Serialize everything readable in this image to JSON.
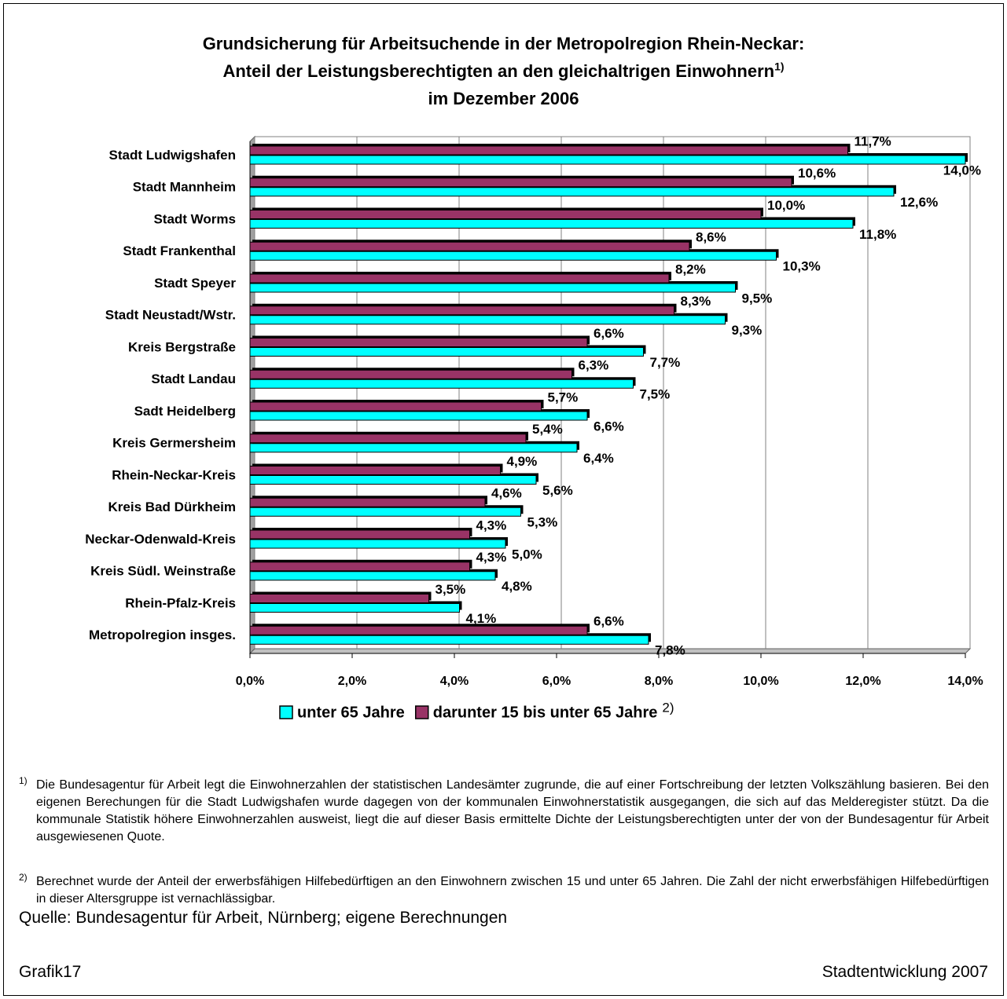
{
  "chart_data": {
    "type": "hbar",
    "title": [
      "Grundsicherung für Arbeitsuchende in der Metropolregion Rhein-Neckar:",
      "Anteil der Leistungsberechtigten an den gleichaltrigen Einwohnern",
      "im Dezember 2006"
    ],
    "title_superscript": "1)",
    "categories": [
      "Stadt Ludwigshafen",
      "Stadt Mannheim",
      "Stadt Worms",
      "Stadt Frankenthal",
      "Stadt Speyer",
      "Stadt Neustadt/Wstr.",
      "Kreis Bergstraße",
      "Stadt Landau",
      "Sadt Heidelberg",
      "Kreis Germersheim",
      "Rhein-Neckar-Kreis",
      "Kreis Bad Dürkheim",
      "Neckar-Odenwald-Kreis",
      "Kreis Südl. Weinstraße",
      "Rhein-Pfalz-Kreis",
      "Metropolregion insges."
    ],
    "series": [
      {
        "name": "unter 65 Jahre",
        "color": "#00ffff",
        "values": [
          14.0,
          12.6,
          11.8,
          10.3,
          9.5,
          9.3,
          7.7,
          7.5,
          6.6,
          6.4,
          5.6,
          5.3,
          5.0,
          4.8,
          4.1,
          7.8
        ],
        "value_labels": [
          "14,0%",
          "12,6%",
          "11,8%",
          "10,3%",
          "9,5%",
          "9,3%",
          "7,7%",
          "7,5%",
          "6,6%",
          "6,4%",
          "5,6%",
          "5,3%",
          "5,0%",
          "4,8%",
          "4,1%",
          "7,8%"
        ]
      },
      {
        "name": "darunter 15 bis unter 65 Jahre",
        "color": "#993366",
        "values": [
          11.7,
          10.6,
          10.0,
          8.6,
          8.2,
          8.3,
          6.6,
          6.3,
          5.7,
          5.4,
          4.9,
          4.6,
          4.3,
          4.3,
          3.5,
          6.6
        ],
        "value_labels": [
          "11,7%",
          "10,6%",
          "10,0%",
          "8,6%",
          "8,2%",
          "8,3%",
          "6,6%",
          "6,3%",
          "5,7%",
          "5,4%",
          "4,9%",
          "4,6%",
          "4,3%",
          "4,3%",
          "3,5%",
          "6,6%"
        ]
      }
    ],
    "legend_superscript": "2)",
    "xlim": [
      0,
      14
    ],
    "xticks": [
      {
        "value": 0,
        "label": "0,0%"
      },
      {
        "value": 2,
        "label": "2,0%"
      },
      {
        "value": 4,
        "label": "4,0%"
      },
      {
        "value": 6,
        "label": "6,0%"
      },
      {
        "value": 8,
        "label": "8,0%"
      },
      {
        "value": 10,
        "label": "10,0%"
      },
      {
        "value": 12,
        "label": "12,0%"
      },
      {
        "value": 14,
        "label": "14,0%"
      }
    ],
    "grid": true
  },
  "footnotes": [
    {
      "marker": "1)",
      "text": "Die Bundesagentur für Arbeit legt die Einwohnerzahlen der statistischen Landesämter zugrunde, die auf einer Fortschreibung der letzten Volkszählung basieren. Bei den eigenen Berechungen für die Stadt Ludwigshafen wurde dagegen von der kommunalen Einwohnerstatistik ausgegangen, die sich auf das Melderegister stützt. Da die kommunale Statistik höhere Einwohnerzahlen ausweist, liegt die auf dieser Basis ermittelte Dichte der Leistungsberechtigten unter der von der Bundesagentur für Arbeit ausgewiesenen Quote."
    },
    {
      "marker": "2)",
      "text": "Berechnet wurde der Anteil der erwerbsfähigen Hilfebedürftigen an den Einwohnern zwischen 15 und unter 65 Jahren. Die Zahl der nicht erwerbsfähigen Hilfebedürftigen in dieser Altersgruppe ist vernachlässigbar."
    }
  ],
  "source": "Quelle: Bundesagentur für Arbeit, Nürnberg; eigene Berechnungen",
  "footer": {
    "left": "Grafik17",
    "right": "Stadtentwicklung 2007"
  }
}
